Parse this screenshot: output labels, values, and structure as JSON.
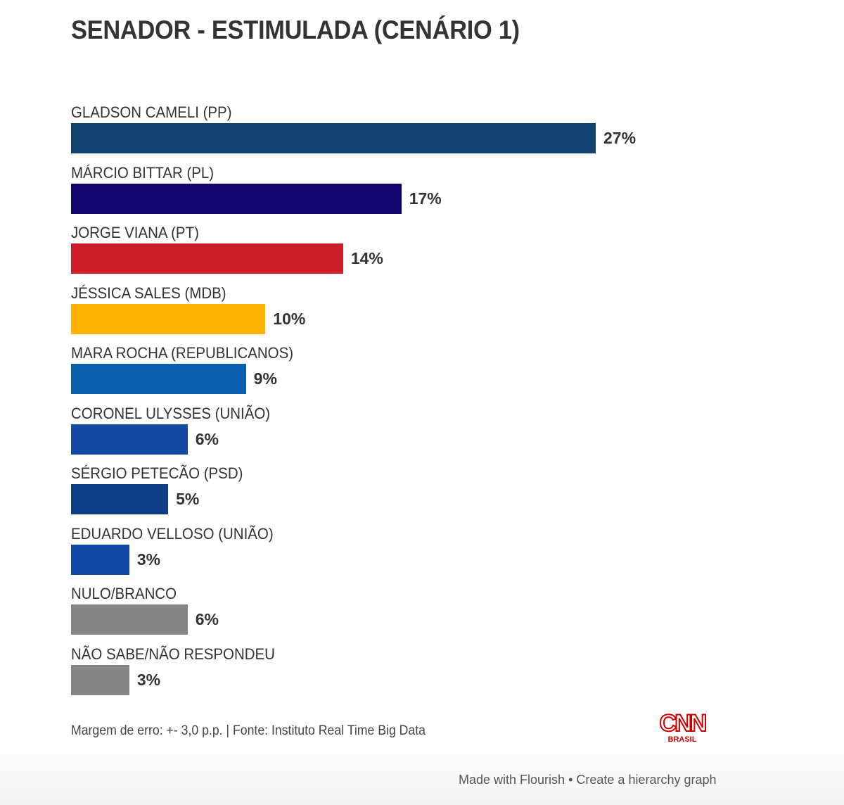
{
  "header": {
    "title": "SENADOR - ESTIMULADA (CENÁRIO 1)"
  },
  "chart_data": {
    "type": "bar",
    "orientation": "horizontal",
    "title": "SENADOR - ESTIMULADA (CENÁRIO 1)",
    "xlabel": "",
    "ylabel": "",
    "unit": "%",
    "grid": false,
    "legend": "none",
    "xlim": [
      0,
      27
    ],
    "categories": [
      "GLADSON CAMELI (PP)",
      "MÁRCIO BITTAR (PL)",
      "JORGE VIANA (PT)",
      "JÉSSICA SALES (MDB)",
      "MARA ROCHA (REPUBLICANOS)",
      "CORONEL ULYSSES (UNIÃO)",
      "SÉRGIO PETECÃO (PSD)",
      "EDUARDO VELLOSO (UNIÃO)",
      "NULO/BRANCO",
      "NÃO SABE/NÃO RESPONDEU"
    ],
    "values": [
      27,
      17,
      14,
      10,
      9,
      6,
      5,
      3,
      6,
      3
    ],
    "value_labels": [
      "27%",
      "17%",
      "14%",
      "10%",
      "9%",
      "6%",
      "5%",
      "3%",
      "6%",
      "3%"
    ],
    "colors": [
      "#10426f",
      "#13056e",
      "#cc1f2a",
      "#fdb400",
      "#0b5fad",
      "#1348a3",
      "#0c3e85",
      "#1149a6",
      "#858585",
      "#858585"
    ]
  },
  "footer": {
    "note": "Margem de erro: +- 3,0 p.p. | Fonte: Instituto Real Time Big Data",
    "logo_main": "CNN",
    "logo_sub": "BRASIL",
    "flourish_made": "Made with Flourish",
    "flourish_sep": "•",
    "flourish_create": "Create a hierarchy graph"
  }
}
